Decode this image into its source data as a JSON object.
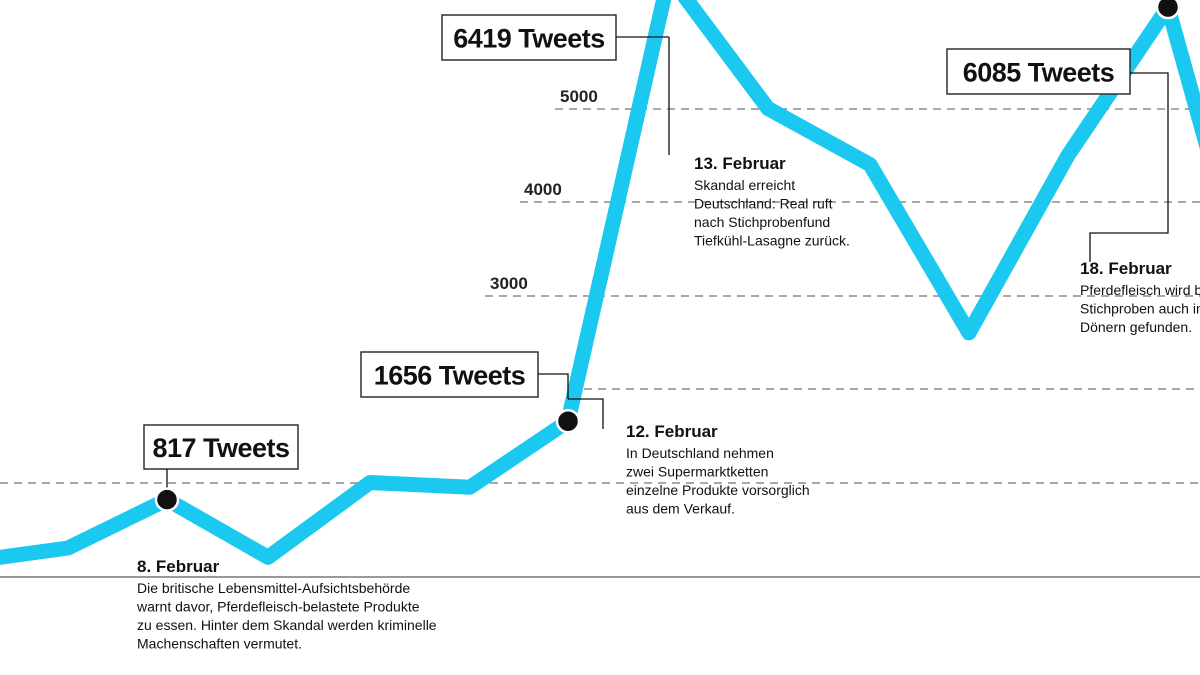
{
  "chart_data": {
    "type": "line",
    "x": [
      0,
      1,
      2,
      3,
      4,
      5,
      6,
      7,
      8,
      9,
      10,
      11,
      12
    ],
    "values": [
      200,
      300,
      817,
      200,
      1000,
      950,
      1656,
      6419,
      5000,
      4400,
      2600,
      4500,
      6085
    ],
    "yticks": [
      3000,
      4000,
      5000
    ],
    "grid": true,
    "color": "#1ac8f0",
    "annotations": [
      {
        "index": 2,
        "box": "817 Tweets",
        "date": "8. Februar",
        "text": [
          "Die britische Lebensmittel-Aufsichtsbehörde",
          "warnt davor, Pferdefleisch-belastete Produkte",
          "zu essen. Hinter dem Skandal werden kriminelle",
          "Machenschaften vermutet."
        ]
      },
      {
        "index": 6,
        "box": "1656 Tweets",
        "date": "12. Februar",
        "text": [
          "In Deutschland nehmen",
          "zwei Supermarktketten",
          "einzelne Produkte vorsorglich",
          "aus dem Verkauf."
        ]
      },
      {
        "index": 7,
        "box": "6419 Tweets",
        "date": "13. Februar",
        "text": [
          "Skandal erreicht",
          "Deutschland: Real ruft",
          "nach Stichprobenfund",
          "Tiefkühl-Lasagne zurück."
        ]
      },
      {
        "index": 12,
        "box": "6085 Tweets",
        "date": "18. Februar",
        "text": [
          "Pferdefleisch wird b",
          "Stichproben auch in",
          "Dönern gefunden."
        ]
      }
    ]
  }
}
